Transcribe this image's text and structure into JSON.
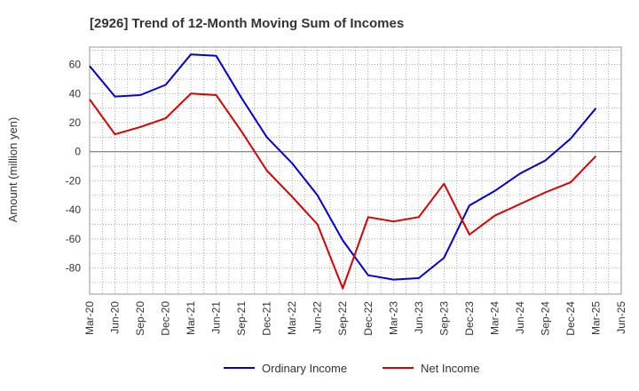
{
  "chart_data": {
    "type": "line",
    "title": "[2926]  Trend of 12-Month Moving Sum of Incomes",
    "xlabel": "",
    "ylabel": "Amount (million yen)",
    "ylim": [
      -98,
      72
    ],
    "yticks": [
      60,
      40,
      20,
      0,
      -20,
      -40,
      -60,
      -80
    ],
    "categories": [
      "Mar-20",
      "Jun-20",
      "Sep-20",
      "Dec-20",
      "Mar-21",
      "Jun-21",
      "Sep-21",
      "Dec-21",
      "Mar-22",
      "Jun-22",
      "Sep-22",
      "Dec-22",
      "Mar-23",
      "Jun-23",
      "Sep-23",
      "Dec-23",
      "Mar-24",
      "Jun-24",
      "Sep-24",
      "Dec-24",
      "Mar-25",
      "Jun-25"
    ],
    "grid": true,
    "legend_position": "bottom",
    "series": [
      {
        "name": "Ordinary Income",
        "color": "#0000dd",
        "values": [
          59,
          38,
          39,
          46,
          67,
          66,
          37,
          10,
          -8,
          -30,
          -61,
          -85,
          -88,
          -87,
          -73,
          -37,
          -27,
          -15,
          -6,
          9,
          30,
          null
        ]
      },
      {
        "name": "Net Income",
        "color": "#dd0000",
        "values": [
          36,
          12,
          17,
          23,
          40,
          39,
          14,
          -13,
          -31,
          -50,
          -94,
          -45,
          -48,
          -45,
          -22,
          -57,
          -44,
          -36,
          -28,
          -21,
          -3,
          null
        ]
      }
    ]
  }
}
